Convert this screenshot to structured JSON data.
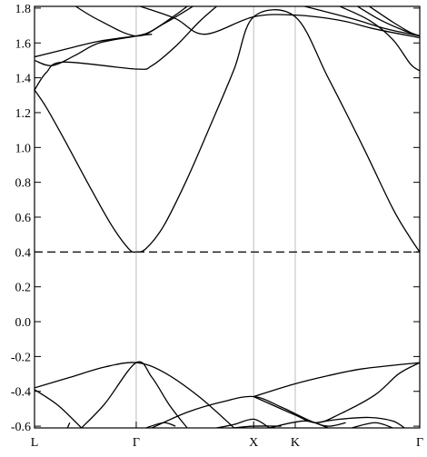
{
  "chart_data": {
    "type": "line",
    "title": "",
    "xlabel": "",
    "ylabel": "",
    "ylim": [
      -0.61,
      1.81
    ],
    "y_ticks": [
      "-0.6",
      "-0.4",
      "-0.2",
      "0.0",
      "0.2",
      "0.4",
      "0.6",
      "0.8",
      "1.0",
      "1.2",
      "1.4",
      "1.6",
      "1.8"
    ],
    "k_points": [
      {
        "label": "L",
        "k": 0.0
      },
      {
        "label": "Γ",
        "k": 0.866
      },
      {
        "label": "X",
        "k": 1.866
      },
      {
        "label": "K",
        "k": 2.22
      },
      {
        "label": "Γ",
        "k": 3.28
      }
    ],
    "grid": false,
    "fermi_level": 0.4,
    "series": [
      {
        "values": [
          [
            0,
            1.33
          ],
          [
            0.1,
            1.23
          ],
          [
            0.25,
            1.05
          ],
          [
            0.45,
            0.8
          ],
          [
            0.65,
            0.56
          ],
          [
            0.8,
            0.42
          ],
          [
            0.866,
            0.4
          ],
          [
            0.95,
            0.42
          ],
          [
            1.1,
            0.55
          ],
          [
            1.3,
            0.82
          ],
          [
            1.5,
            1.13
          ],
          [
            1.7,
            1.45
          ],
          [
            1.866,
            1.75
          ],
          [
            2.22,
            1.75
          ],
          [
            2.5,
            1.4
          ],
          [
            2.8,
            1.0
          ],
          [
            3.05,
            0.65
          ],
          [
            3.2,
            0.48
          ],
          [
            3.28,
            0.4
          ]
        ]
      },
      {
        "values": [
          [
            0,
            1.33
          ],
          [
            0.1,
            1.43
          ],
          [
            0.25,
            1.49
          ],
          [
            0.866,
            1.45
          ],
          [
            1.0,
            1.47
          ],
          [
            1.2,
            1.58
          ],
          [
            1.4,
            1.72
          ],
          [
            1.55,
            1.81
          ]
        ]
      },
      {
        "values": [
          [
            0,
            1.5
          ],
          [
            0.15,
            1.47
          ],
          [
            0.35,
            1.53
          ],
          [
            0.55,
            1.6
          ],
          [
            0.866,
            1.64
          ],
          [
            1.0,
            1.67
          ],
          [
            1.2,
            1.76
          ],
          [
            1.3,
            1.81
          ]
        ]
      },
      {
        "values": [
          [
            0,
            1.52
          ],
          [
            0.3,
            1.57
          ],
          [
            0.55,
            1.61
          ],
          [
            0.866,
            1.64
          ],
          [
            1.0,
            1.65
          ]
        ]
      },
      {
        "values": [
          [
            0.9,
            1.81
          ],
          [
            1.2,
            1.74
          ],
          [
            1.45,
            1.65
          ],
          [
            1.866,
            1.75
          ],
          [
            2.22,
            1.76
          ],
          [
            2.6,
            1.73
          ],
          [
            2.9,
            1.68
          ],
          [
            3.28,
            1.63
          ]
        ]
      },
      {
        "values": [
          [
            0.35,
            1.81
          ],
          [
            0.55,
            1.73
          ],
          [
            0.866,
            1.64
          ],
          [
            1.1,
            1.71
          ],
          [
            1.35,
            1.81
          ]
        ]
      },
      {
        "values": [
          [
            2.3,
            1.81
          ],
          [
            2.7,
            1.74
          ],
          [
            3.0,
            1.68
          ],
          [
            3.28,
            1.64
          ]
        ]
      },
      {
        "values": [
          [
            2.6,
            1.81
          ],
          [
            2.85,
            1.73
          ],
          [
            3.05,
            1.62
          ],
          [
            3.2,
            1.48
          ],
          [
            3.28,
            1.44
          ]
        ]
      },
      {
        "values": [
          [
            2.75,
            1.81
          ],
          [
            2.95,
            1.73
          ],
          [
            3.15,
            1.67
          ],
          [
            3.28,
            1.64
          ]
        ]
      },
      {
        "values": [
          [
            2.85,
            1.81
          ],
          [
            3.05,
            1.72
          ],
          [
            3.2,
            1.66
          ],
          [
            3.28,
            1.64
          ]
        ]
      },
      {
        "values": [
          [
            0,
            -0.38
          ],
          [
            0.3,
            -0.32
          ],
          [
            0.6,
            -0.26
          ],
          [
            0.866,
            -0.235
          ],
          [
            1.1,
            -0.29
          ],
          [
            1.4,
            -0.43
          ],
          [
            1.7,
            -0.61
          ]
        ]
      },
      {
        "values": [
          [
            0,
            -0.39
          ],
          [
            0.2,
            -0.48
          ],
          [
            0.4,
            -0.61
          ]
        ]
      },
      {
        "values": [
          [
            0.4,
            -0.61
          ],
          [
            0.6,
            -0.47
          ],
          [
            0.866,
            -0.235
          ],
          [
            1.0,
            -0.32
          ],
          [
            1.15,
            -0.48
          ],
          [
            1.3,
            -0.61
          ]
        ]
      },
      {
        "values": [
          [
            0.28,
            -0.61
          ],
          [
            0.3,
            -0.58
          ]
        ]
      },
      {
        "values": [
          [
            0.95,
            -0.61
          ],
          [
            1.1,
            -0.58
          ],
          [
            1.2,
            -0.6
          ]
        ]
      },
      {
        "values": [
          [
            1.0,
            -0.61
          ],
          [
            1.3,
            -0.52
          ],
          [
            1.6,
            -0.46
          ],
          [
            1.866,
            -0.43
          ],
          [
            2.1,
            -0.49
          ],
          [
            2.35,
            -0.57
          ],
          [
            2.5,
            -0.6
          ],
          [
            2.65,
            -0.58
          ]
        ]
      },
      {
        "values": [
          [
            1.866,
            -0.43
          ],
          [
            2.2,
            -0.36
          ],
          [
            2.5,
            -0.31
          ],
          [
            2.8,
            -0.27
          ],
          [
            3.28,
            -0.235
          ]
        ]
      },
      {
        "values": [
          [
            1.866,
            -0.43
          ],
          [
            2.2,
            -0.53
          ],
          [
            2.4,
            -0.58
          ],
          [
            2.6,
            -0.53
          ],
          [
            2.9,
            -0.42
          ],
          [
            3.1,
            -0.3
          ],
          [
            3.28,
            -0.235
          ]
        ]
      },
      {
        "values": [
          [
            2.4,
            -0.58
          ],
          [
            2.6,
            -0.56
          ],
          [
            2.85,
            -0.55
          ],
          [
            3.05,
            -0.57
          ],
          [
            3.15,
            -0.61
          ]
        ]
      },
      {
        "values": [
          [
            1.7,
            -0.61
          ],
          [
            1.866,
            -0.6
          ],
          [
            2.1,
            -0.6
          ]
        ]
      },
      {
        "values": [
          [
            2.0,
            -0.61
          ],
          [
            2.3,
            -0.57
          ],
          [
            2.5,
            -0.61
          ]
        ]
      },
      {
        "values": [
          [
            2.7,
            -0.61
          ],
          [
            2.9,
            -0.58
          ],
          [
            3.05,
            -0.61
          ]
        ]
      },
      {
        "values": [
          [
            1.55,
            -0.61
          ],
          [
            1.7,
            -0.59
          ],
          [
            1.866,
            -0.56
          ],
          [
            2.0,
            -0.61
          ]
        ]
      }
    ]
  }
}
